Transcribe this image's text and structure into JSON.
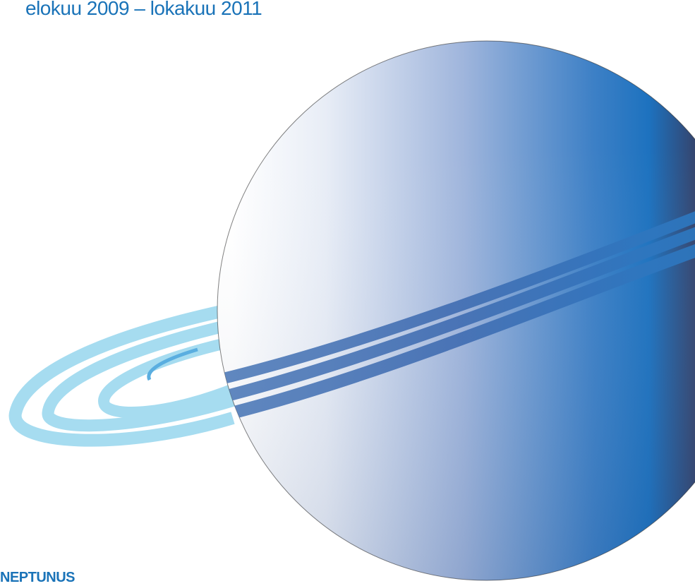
{
  "header": {
    "date_range": "elokuu 2009 – lokakuu 2011"
  },
  "footer": {
    "logo_word": "NEPTUNUS"
  },
  "illustration": {
    "subject": "planet-with-rings",
    "icon": "ringed-planet-icon",
    "rings": 3
  },
  "colors": {
    "text": "#1a73b8",
    "planet_light": "#ffffff",
    "planet_mid": "#7f9fd0",
    "planet_deep": "#1f72bd",
    "planet_dark": "#2a3f6e",
    "ring_light": "#a6dcf0",
    "ring_deep": "#3a6aae"
  }
}
